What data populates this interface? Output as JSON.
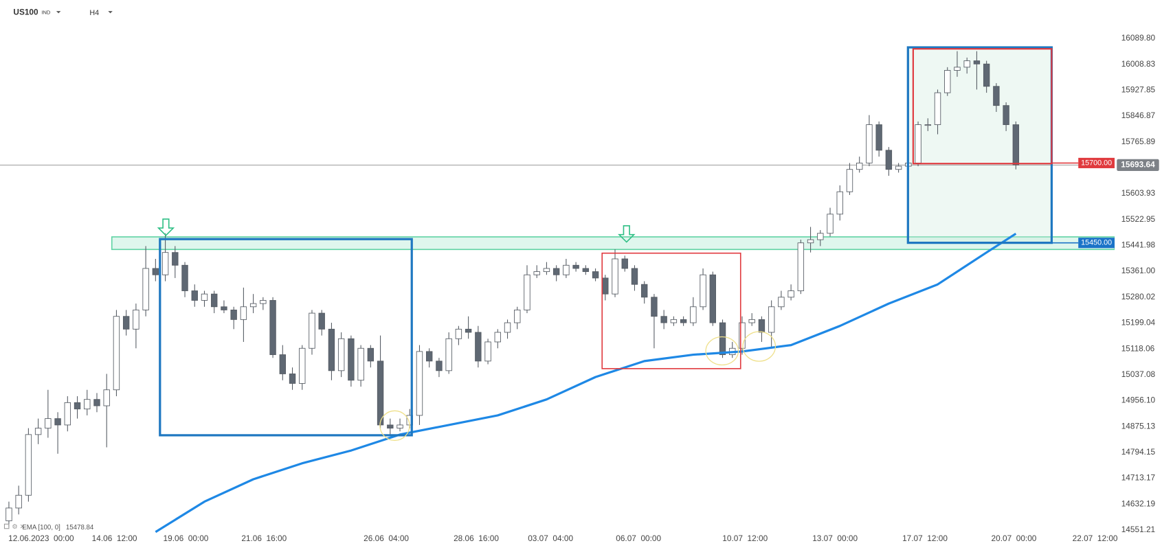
{
  "header": {
    "symbol": "US100",
    "market": "IND",
    "timeframe": "H4"
  },
  "chart_data": {
    "type": "candlestick",
    "xlim": [
      -0.91,
      113.1
    ],
    "ylim": [
      14500.2,
      16210.3
    ],
    "xticks": [
      {
        "value": 3.3,
        "label": "12.06.2023  00:00"
      },
      {
        "value": 10.8,
        "label": "14.06  12:00"
      },
      {
        "value": 18.1,
        "label": "19.06  00:00"
      },
      {
        "value": 26.1,
        "label": "21.06  16:00"
      },
      {
        "value": 38.6,
        "label": "26.06  04:00"
      },
      {
        "value": 47.8,
        "label": "28.06  16:00"
      },
      {
        "value": 55.4,
        "label": "03.07  04:00"
      },
      {
        "value": 64.4,
        "label": "06.07  00:00"
      },
      {
        "value": 75.3,
        "label": "10.07  12:00"
      },
      {
        "value": 84.5,
        "label": "13.07  00:00"
      },
      {
        "value": 93.7,
        "label": "17.07  12:00"
      },
      {
        "value": 102.8,
        "label": "20.07  00:00"
      },
      {
        "value": 111.1,
        "label": "22.07  12:00"
      }
    ],
    "yticks": [
      {
        "value": 16089.8,
        "label": "16089.80"
      },
      16008.83,
      15927.85,
      15846.87,
      15765.89,
      15603.93,
      15522.95,
      15441.98,
      {
        "value": 15361,
        "label": "15361.00"
      },
      15280.02,
      15199.04,
      15118.06,
      15037.08,
      {
        "value": 14956.1,
        "label": "14956.10"
      },
      14875.13,
      14794.15,
      14713.17,
      14632.19,
      14551.21
    ],
    "up_color": "#ffffff",
    "down_color": "#5f6873",
    "wick_color": "#555b63",
    "candles": [
      [
        14580,
        14640,
        14560,
        14620
      ],
      [
        14620,
        14690,
        14600,
        14660
      ],
      [
        14660,
        14870,
        14640,
        14850
      ],
      [
        14850,
        14900,
        14820,
        14870
      ],
      [
        14870,
        14990,
        14840,
        14900
      ],
      [
        14900,
        14920,
        14790,
        14880
      ],
      [
        14880,
        14970,
        14860,
        14950
      ],
      [
        14950,
        14970,
        14900,
        14930
      ],
      [
        14930,
        14990,
        14910,
        14960
      ],
      [
        14960,
        14980,
        14920,
        14940
      ],
      [
        14940,
        15040,
        14810,
        14990
      ],
      [
        14990,
        15240,
        14970,
        15220
      ],
      [
        15220,
        15240,
        15160,
        15180
      ],
      [
        15180,
        15260,
        15120,
        15240
      ],
      [
        15240,
        15440,
        15220,
        15370
      ],
      [
        15370,
        15400,
        15330,
        15350
      ],
      [
        15350,
        15480,
        15330,
        15420
      ],
      [
        15420,
        15440,
        15340,
        15380
      ],
      [
        15380,
        15390,
        15280,
        15300
      ],
      [
        15300,
        15320,
        15250,
        15270
      ],
      [
        15270,
        15300,
        15250,
        15290
      ],
      [
        15290,
        15300,
        15230,
        15250
      ],
      [
        15250,
        15270,
        15230,
        15240
      ],
      [
        15240,
        15250,
        15180,
        15210
      ],
      [
        15210,
        15310,
        15140,
        15250
      ],
      [
        15250,
        15290,
        15230,
        15260
      ],
      [
        15260,
        15280,
        15240,
        15270
      ],
      [
        15270,
        15280,
        15090,
        15100
      ],
      [
        15100,
        15130,
        15020,
        15040
      ],
      [
        15040,
        15060,
        14990,
        15010
      ],
      [
        15010,
        15130,
        14990,
        15120
      ],
      [
        15120,
        15240,
        15100,
        15230
      ],
      [
        15230,
        15240,
        15160,
        15180
      ],
      [
        15180,
        15200,
        15020,
        15050
      ],
      [
        15050,
        15170,
        15030,
        15150
      ],
      [
        15150,
        15160,
        15000,
        15020
      ],
      [
        15020,
        15130,
        15000,
        15120
      ],
      [
        15120,
        15130,
        15060,
        15080
      ],
      [
        15080,
        15160,
        14870,
        14880
      ],
      [
        14880,
        14900,
        14850,
        14870
      ],
      [
        14870,
        14900,
        14860,
        14880
      ],
      [
        14880,
        14930,
        14870,
        14910
      ],
      [
        14910,
        15130,
        14880,
        15110
      ],
      [
        15110,
        15120,
        15060,
        15080
      ],
      [
        15080,
        15090,
        15030,
        15050
      ],
      [
        15050,
        15170,
        15040,
        15150
      ],
      [
        15150,
        15190,
        15130,
        15180
      ],
      [
        15180,
        15220,
        15150,
        15170
      ],
      [
        15170,
        15190,
        15060,
        15080
      ],
      [
        15080,
        15150,
        15070,
        15140
      ],
      [
        15140,
        15180,
        15120,
        15170
      ],
      [
        15170,
        15210,
        15150,
        15200
      ],
      [
        15200,
        15250,
        15180,
        15240
      ],
      [
        15240,
        15380,
        15230,
        15350
      ],
      [
        15350,
        15380,
        15340,
        15360
      ],
      [
        15360,
        15390,
        15350,
        15370
      ],
      [
        15370,
        15380,
        15330,
        15350
      ],
      [
        15350,
        15400,
        15340,
        15380
      ],
      [
        15380,
        15390,
        15360,
        15370
      ],
      [
        15370,
        15380,
        15350,
        15360
      ],
      [
        15360,
        15370,
        15330,
        15340
      ],
      [
        15340,
        15350,
        15270,
        15290
      ],
      [
        15290,
        15430,
        15280,
        15400
      ],
      [
        15400,
        15410,
        15360,
        15370
      ],
      [
        15370,
        15380,
        15300,
        15320
      ],
      [
        15320,
        15330,
        15260,
        15280
      ],
      [
        15280,
        15290,
        15120,
        15220
      ],
      [
        15220,
        15240,
        15180,
        15200
      ],
      [
        15200,
        15220,
        15190,
        15210
      ],
      [
        15210,
        15220,
        15190,
        15200
      ],
      [
        15200,
        15280,
        15190,
        15250
      ],
      [
        15250,
        15370,
        15240,
        15350
      ],
      [
        15350,
        15360,
        15190,
        15200
      ],
      [
        15200,
        15210,
        15090,
        15100
      ],
      [
        15100,
        15140,
        15090,
        15120
      ],
      [
        15120,
        15220,
        15100,
        15200
      ],
      [
        15200,
        15230,
        15190,
        15210
      ],
      [
        15210,
        15220,
        15140,
        15170
      ],
      [
        15170,
        15270,
        15120,
        15250
      ],
      [
        15250,
        15300,
        15240,
        15280
      ],
      [
        15280,
        15320,
        15270,
        15300
      ],
      [
        15300,
        15460,
        15290,
        15450
      ],
      [
        15450,
        15500,
        15420,
        15460
      ],
      [
        15460,
        15490,
        15440,
        15480
      ],
      [
        15480,
        15560,
        15470,
        15540
      ],
      [
        15540,
        15630,
        15520,
        15610
      ],
      [
        15610,
        15700,
        15600,
        15680
      ],
      [
        15680,
        15720,
        15670,
        15700
      ],
      [
        15700,
        15850,
        15690,
        15820
      ],
      [
        15820,
        15830,
        15720,
        15740
      ],
      [
        15740,
        15750,
        15660,
        15680
      ],
      [
        15680,
        15700,
        15670,
        15690
      ],
      [
        15690,
        15710,
        15680,
        15700
      ],
      [
        15700,
        15830,
        15690,
        15820
      ],
      [
        15820,
        15840,
        15800,
        15820
      ],
      [
        15820,
        15930,
        15790,
        15920
      ],
      [
        15920,
        16000,
        15910,
        15990
      ],
      [
        15990,
        16050,
        15970,
        16000
      ],
      [
        16000,
        16030,
        15980,
        16020
      ],
      [
        16020,
        16050,
        15930,
        16010
      ],
      [
        16010,
        16020,
        15920,
        15940
      ],
      [
        15940,
        15950,
        15860,
        15880
      ],
      [
        15880,
        15890,
        15800,
        15820
      ],
      [
        15820,
        15830,
        15680,
        15694
      ]
    ],
    "ema": {
      "name": "EMA [100, 0]",
      "color": "#1e88e5",
      "x": [
        15,
        20,
        25,
        30,
        35,
        40,
        45,
        50,
        55,
        60,
        65,
        70,
        75,
        80,
        85,
        90,
        95,
        100,
        103
      ],
      "values": [
        14545,
        14640,
        14710,
        14760,
        14800,
        14850,
        14880,
        14910,
        14960,
        15030,
        15080,
        15100,
        15110,
        15130,
        15190,
        15260,
        15320,
        15420,
        15478.84
      ]
    },
    "levels": [
      {
        "value": 15700,
        "label": "15700.00",
        "color": "#e03a3e"
      },
      {
        "value": 15450,
        "label": "15450.00",
        "color": "#1a73c8"
      }
    ],
    "last_price": 15693.64
  }
}
